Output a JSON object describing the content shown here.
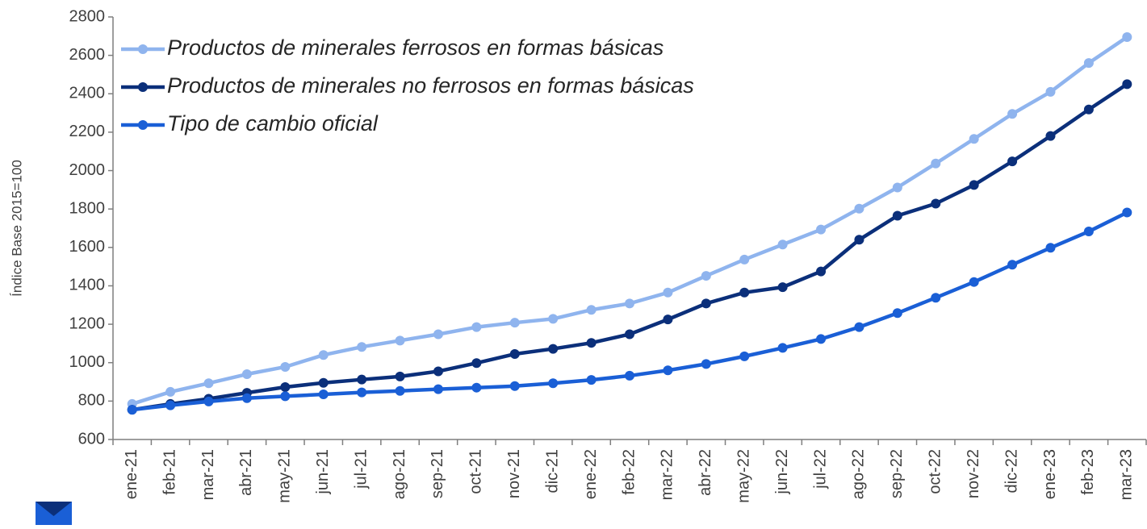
{
  "chart_data": {
    "type": "line",
    "y_label": "Índice Base 2015=100",
    "categories": [
      "ene-21",
      "feb-21",
      "mar-21",
      "abr-21",
      "may-21",
      "jun-21",
      "jul-21",
      "ago-21",
      "sep-21",
      "oct-21",
      "nov-21",
      "dic-21",
      "ene-22",
      "feb-22",
      "mar-22",
      "abr-22",
      "may-22",
      "jun-22",
      "jul-22",
      "ago-22",
      "sep-22",
      "oct-22",
      "nov-22",
      "dic-22",
      "ene-23",
      "feb-23",
      "mar-23"
    ],
    "series": [
      {
        "name": "Productos de minerales ferrosos en formas básicas",
        "color": "#8fb4ee",
        "values": [
          785,
          848,
          893,
          940,
          978,
          1040,
          1082,
          1115,
          1148,
          1185,
          1208,
          1228,
          1275,
          1308,
          1365,
          1452,
          1537,
          1615,
          1693,
          1802,
          1912,
          2037,
          2165,
          2295,
          2410,
          2560,
          2695
        ]
      },
      {
        "name": "Productos de minerales no ferrosos en formas básicas",
        "color": "#0b2f7a",
        "values": [
          755,
          785,
          812,
          843,
          873,
          895,
          912,
          928,
          955,
          998,
          1045,
          1072,
          1103,
          1148,
          1225,
          1308,
          1365,
          1393,
          1475,
          1640,
          1765,
          1828,
          1925,
          2048,
          2180,
          2318,
          2450
        ]
      },
      {
        "name": "Tipo de cambio oficial",
        "color": "#1a5fd6",
        "values": [
          755,
          778,
          798,
          815,
          825,
          835,
          845,
          853,
          862,
          870,
          878,
          893,
          910,
          932,
          960,
          993,
          1033,
          1077,
          1123,
          1185,
          1258,
          1338,
          1420,
          1510,
          1598,
          1683,
          1782
        ]
      }
    ],
    "ylim": [
      600,
      2800
    ],
    "yticks": [
      600,
      800,
      1000,
      1200,
      1400,
      1600,
      1800,
      2000,
      2200,
      2400,
      2600,
      2800
    ],
    "legend": "upper left",
    "grid": false
  }
}
